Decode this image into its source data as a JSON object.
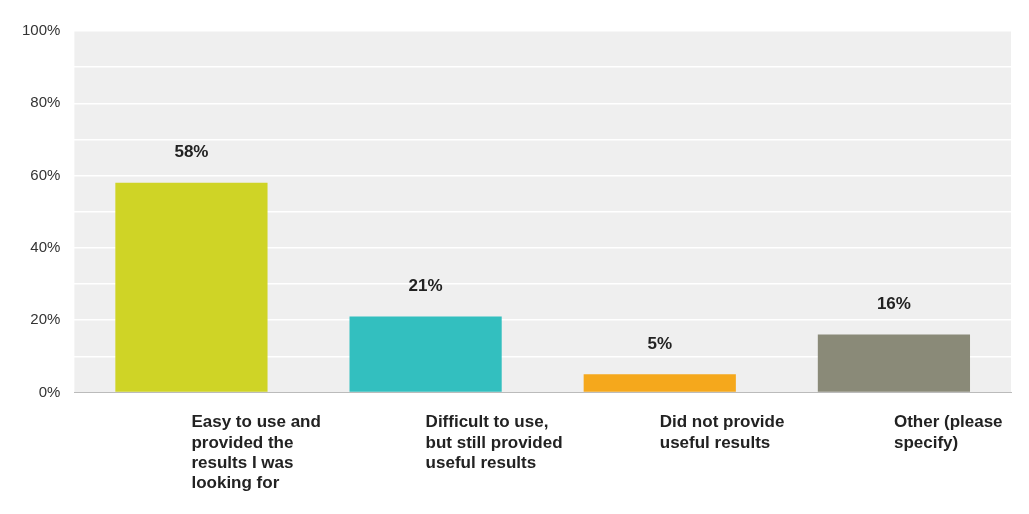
{
  "chart_data": {
    "type": "bar",
    "categories": [
      "Easy to use and provided the results I was looking for",
      "Difficult to use, but still provided useful results",
      "Did not provide useful results",
      "Other (please specify)"
    ],
    "values": [
      58,
      21,
      5,
      16
    ],
    "colors": [
      "#cfd426",
      "#33bfbf",
      "#f5a81c",
      "#8a8a78"
    ],
    "value_labels": [
      "58%",
      "21%",
      "5%",
      "16%"
    ],
    "ylim": [
      0,
      100
    ],
    "yticks": [
      {
        "value": 0,
        "label": "0%"
      },
      {
        "value": 10,
        "label": null
      },
      {
        "value": 20,
        "label": "20%"
      },
      {
        "value": 30,
        "label": null
      },
      {
        "value": 40,
        "label": "40%"
      },
      {
        "value": 50,
        "label": null
      },
      {
        "value": 60,
        "label": "60%"
      },
      {
        "value": 70,
        "label": null
      },
      {
        "value": 80,
        "label": "80%"
      },
      {
        "value": 90,
        "label": null
      },
      {
        "value": 100,
        "label": "100%"
      }
    ],
    "grid": "y",
    "legend": false
  }
}
